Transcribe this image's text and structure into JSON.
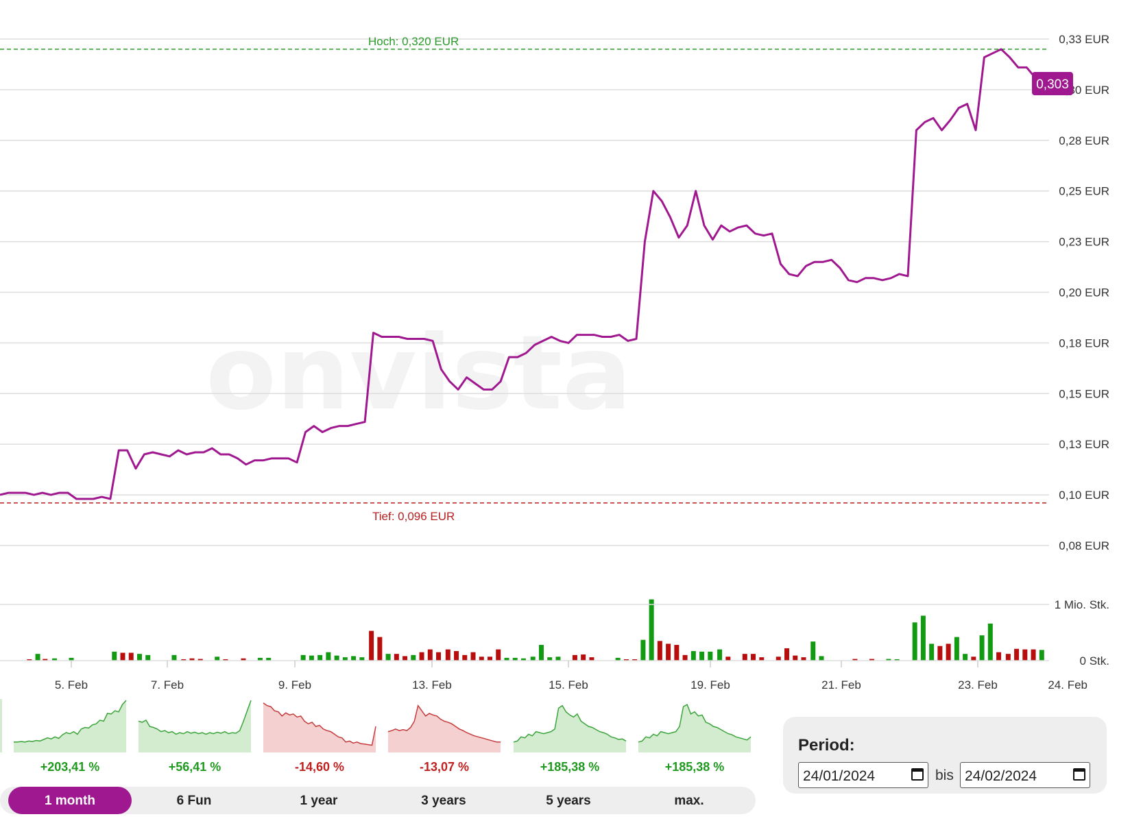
{
  "chart_data": {
    "type": "line",
    "watermark": "onvista",
    "y_ticks": [
      "0,33 EUR",
      "0,30 EUR",
      "0,28 EUR",
      "0,25 EUR",
      "0,23 EUR",
      "0,20 EUR",
      "0,18 EUR",
      "0,15 EUR",
      "0,13 EUR",
      "0,10 EUR",
      "0,08 EUR"
    ],
    "y_tick_values": [
      0.325,
      0.3,
      0.275,
      0.25,
      0.225,
      0.2,
      0.175,
      0.15,
      0.125,
      0.1,
      0.075
    ],
    "ylim": [
      0.075,
      0.325
    ],
    "x_ticks": [
      "5. Feb",
      "7. Feb",
      "9. Feb",
      "13. Feb",
      "15. Feb",
      "19. Feb",
      "21. Feb",
      "23. Feb",
      "24. Feb"
    ],
    "high_label": "Hoch: 0,320 EUR",
    "high_value": 0.32,
    "low_label": "Tief: 0,096 EUR",
    "low_value": 0.096,
    "current_label": "0,303",
    "current_value": 0.303,
    "series": [
      {
        "values": [
          0.1,
          0.101,
          0.101,
          0.101,
          0.1,
          0.101,
          0.1,
          0.101,
          0.101,
          0.098,
          0.098,
          0.098,
          0.099,
          0.098,
          0.122,
          0.122,
          0.113,
          0.12,
          0.121,
          0.12,
          0.119,
          0.122,
          0.12,
          0.121,
          0.121,
          0.123,
          0.12,
          0.12,
          0.118,
          0.115,
          0.117,
          0.117,
          0.118,
          0.118,
          0.118,
          0.116,
          0.131,
          0.134,
          0.131,
          0.133,
          0.134,
          0.134,
          0.135,
          0.136,
          0.18,
          0.178,
          0.178,
          0.178,
          0.177,
          0.177,
          0.177,
          0.176,
          0.162,
          0.156,
          0.152,
          0.158,
          0.155,
          0.152,
          0.152,
          0.156,
          0.168,
          0.168,
          0.17,
          0.174,
          0.176,
          0.178,
          0.176,
          0.175,
          0.179,
          0.179,
          0.179,
          0.178,
          0.178,
          0.179,
          0.176,
          0.177,
          0.225,
          0.25,
          0.245,
          0.237,
          0.227,
          0.233,
          0.25,
          0.233,
          0.226,
          0.233,
          0.23,
          0.232,
          0.233,
          0.229,
          0.228,
          0.229,
          0.214,
          0.209,
          0.208,
          0.213,
          0.215,
          0.215,
          0.216,
          0.212,
          0.206,
          0.205,
          0.207,
          0.207,
          0.206,
          0.207,
          0.209,
          0.208,
          0.28,
          0.284,
          0.286,
          0.28,
          0.285,
          0.291,
          0.293,
          0.28,
          0.316,
          0.318,
          0.32,
          0.316,
          0.311,
          0.311,
          0.306,
          0.303
        ]
      }
    ],
    "volume": {
      "y_ticks": [
        "1 Mio. Stk.",
        "0 Stk."
      ],
      "max_value": 1.0,
      "bars": [
        {
          "x": 0.028,
          "v": 0.02,
          "c": "red"
        },
        {
          "x": 0.036,
          "v": 0.12,
          "c": "green"
        },
        {
          "x": 0.043,
          "v": 0.03,
          "c": "red"
        },
        {
          "x": 0.052,
          "v": 0.04,
          "c": "green"
        },
        {
          "x": 0.068,
          "v": 0.05,
          "c": "green"
        },
        {
          "x": 0.109,
          "v": 0.16,
          "c": "green"
        },
        {
          "x": 0.117,
          "v": 0.14,
          "c": "red"
        },
        {
          "x": 0.125,
          "v": 0.14,
          "c": "red"
        },
        {
          "x": 0.133,
          "v": 0.12,
          "c": "green"
        },
        {
          "x": 0.141,
          "v": 0.1,
          "c": "green"
        },
        {
          "x": 0.166,
          "v": 0.1,
          "c": "green"
        },
        {
          "x": 0.175,
          "v": 0.02,
          "c": "red"
        },
        {
          "x": 0.183,
          "v": 0.04,
          "c": "red"
        },
        {
          "x": 0.191,
          "v": 0.03,
          "c": "red"
        },
        {
          "x": 0.207,
          "v": 0.07,
          "c": "green"
        },
        {
          "x": 0.215,
          "v": 0.02,
          "c": "red"
        },
        {
          "x": 0.232,
          "v": 0.04,
          "c": "red"
        },
        {
          "x": 0.248,
          "v": 0.05,
          "c": "green"
        },
        {
          "x": 0.256,
          "v": 0.05,
          "c": "green"
        },
        {
          "x": 0.289,
          "v": 0.1,
          "c": "green"
        },
        {
          "x": 0.297,
          "v": 0.09,
          "c": "green"
        },
        {
          "x": 0.305,
          "v": 0.1,
          "c": "green"
        },
        {
          "x": 0.313,
          "v": 0.15,
          "c": "green"
        },
        {
          "x": 0.321,
          "v": 0.09,
          "c": "green"
        },
        {
          "x": 0.329,
          "v": 0.06,
          "c": "green"
        },
        {
          "x": 0.337,
          "v": 0.08,
          "c": "green"
        },
        {
          "x": 0.345,
          "v": 0.06,
          "c": "green"
        },
        {
          "x": 0.354,
          "v": 0.53,
          "c": "red"
        },
        {
          "x": 0.362,
          "v": 0.42,
          "c": "red"
        },
        {
          "x": 0.37,
          "v": 0.12,
          "c": "green"
        },
        {
          "x": 0.378,
          "v": 0.12,
          "c": "red"
        },
        {
          "x": 0.386,
          "v": 0.08,
          "c": "red"
        },
        {
          "x": 0.394,
          "v": 0.1,
          "c": "green"
        },
        {
          "x": 0.402,
          "v": 0.15,
          "c": "red"
        },
        {
          "x": 0.41,
          "v": 0.2,
          "c": "red"
        },
        {
          "x": 0.418,
          "v": 0.15,
          "c": "red"
        },
        {
          "x": 0.427,
          "v": 0.2,
          "c": "red"
        },
        {
          "x": 0.435,
          "v": 0.17,
          "c": "red"
        },
        {
          "x": 0.443,
          "v": 0.1,
          "c": "red"
        },
        {
          "x": 0.451,
          "v": 0.15,
          "c": "red"
        },
        {
          "x": 0.459,
          "v": 0.07,
          "c": "red"
        },
        {
          "x": 0.467,
          "v": 0.07,
          "c": "red"
        },
        {
          "x": 0.475,
          "v": 0.2,
          "c": "red"
        },
        {
          "x": 0.483,
          "v": 0.05,
          "c": "green"
        },
        {
          "x": 0.491,
          "v": 0.05,
          "c": "green"
        },
        {
          "x": 0.499,
          "v": 0.04,
          "c": "green"
        },
        {
          "x": 0.508,
          "v": 0.07,
          "c": "green"
        },
        {
          "x": 0.516,
          "v": 0.28,
          "c": "green"
        },
        {
          "x": 0.524,
          "v": 0.06,
          "c": "green"
        },
        {
          "x": 0.532,
          "v": 0.07,
          "c": "green"
        },
        {
          "x": 0.548,
          "v": 0.1,
          "c": "red"
        },
        {
          "x": 0.556,
          "v": 0.11,
          "c": "red"
        },
        {
          "x": 0.564,
          "v": 0.06,
          "c": "red"
        },
        {
          "x": 0.589,
          "v": 0.05,
          "c": "green"
        },
        {
          "x": 0.597,
          "v": 0.02,
          "c": "red"
        },
        {
          "x": 0.605,
          "v": 0.02,
          "c": "red"
        },
        {
          "x": 0.613,
          "v": 0.37,
          "c": "green"
        },
        {
          "x": 0.621,
          "v": 1.09,
          "c": "green"
        },
        {
          "x": 0.629,
          "v": 0.35,
          "c": "red"
        },
        {
          "x": 0.637,
          "v": 0.3,
          "c": "red"
        },
        {
          "x": 0.645,
          "v": 0.28,
          "c": "red"
        },
        {
          "x": 0.653,
          "v": 0.1,
          "c": "red"
        },
        {
          "x": 0.661,
          "v": 0.17,
          "c": "green"
        },
        {
          "x": 0.669,
          "v": 0.16,
          "c": "green"
        },
        {
          "x": 0.677,
          "v": 0.16,
          "c": "green"
        },
        {
          "x": 0.686,
          "v": 0.2,
          "c": "green"
        },
        {
          "x": 0.694,
          "v": 0.07,
          "c": "red"
        },
        {
          "x": 0.71,
          "v": 0.12,
          "c": "red"
        },
        {
          "x": 0.718,
          "v": 0.12,
          "c": "red"
        },
        {
          "x": 0.726,
          "v": 0.06,
          "c": "red"
        },
        {
          "x": 0.742,
          "v": 0.07,
          "c": "red"
        },
        {
          "x": 0.75,
          "v": 0.22,
          "c": "red"
        },
        {
          "x": 0.758,
          "v": 0.09,
          "c": "red"
        },
        {
          "x": 0.766,
          "v": 0.06,
          "c": "red"
        },
        {
          "x": 0.775,
          "v": 0.34,
          "c": "green"
        },
        {
          "x": 0.783,
          "v": 0.08,
          "c": "green"
        },
        {
          "x": 0.815,
          "v": 0.03,
          "c": "red"
        },
        {
          "x": 0.831,
          "v": 0.03,
          "c": "red"
        },
        {
          "x": 0.847,
          "v": 0.03,
          "c": "green"
        },
        {
          "x": 0.855,
          "v": 0.02,
          "c": "green"
        },
        {
          "x": 0.872,
          "v": 0.68,
          "c": "green"
        },
        {
          "x": 0.88,
          "v": 0.8,
          "c": "green"
        },
        {
          "x": 0.888,
          "v": 0.3,
          "c": "green"
        },
        {
          "x": 0.896,
          "v": 0.26,
          "c": "red"
        },
        {
          "x": 0.904,
          "v": 0.3,
          "c": "red"
        },
        {
          "x": 0.912,
          "v": 0.42,
          "c": "green"
        },
        {
          "x": 0.92,
          "v": 0.12,
          "c": "green"
        },
        {
          "x": 0.928,
          "v": 0.07,
          "c": "red"
        },
        {
          "x": 0.936,
          "v": 0.45,
          "c": "green"
        },
        {
          "x": 0.944,
          "v": 0.66,
          "c": "green"
        },
        {
          "x": 0.952,
          "v": 0.15,
          "c": "red"
        },
        {
          "x": 0.961,
          "v": 0.12,
          "c": "red"
        },
        {
          "x": 0.969,
          "v": 0.21,
          "c": "red"
        },
        {
          "x": 0.977,
          "v": 0.2,
          "c": "red"
        },
        {
          "x": 0.985,
          "v": 0.2,
          "c": "red"
        },
        {
          "x": 0.993,
          "v": 0.19,
          "c": "green"
        }
      ]
    },
    "colors": {
      "price_line": "#a0188f",
      "high": "#2a9a2a",
      "low": "#b52020",
      "volume_up": "#139a13",
      "volume_down": "#b80d0d",
      "grid": "#dddddd"
    }
  },
  "sparklines": [
    {
      "label": "+203,41 %",
      "trend": "up",
      "values": [
        20,
        20,
        21,
        20,
        22,
        21,
        23,
        22,
        25,
        28,
        26,
        30,
        27,
        34,
        38,
        36,
        40,
        35,
        45,
        48,
        47,
        53,
        55,
        62,
        60,
        75,
        74,
        80,
        78,
        92,
        100
      ]
    },
    {
      "label": "+56,41 %",
      "trend": "up",
      "values": [
        60,
        58,
        62,
        50,
        48,
        45,
        40,
        42,
        38,
        40,
        35,
        38,
        36,
        40,
        37,
        39,
        36,
        38,
        35,
        38,
        36,
        39,
        37,
        40,
        36,
        38,
        37,
        42,
        60,
        80,
        100
      ]
    },
    {
      "label": "-14,60 %",
      "trend": "down",
      "values": [
        95,
        90,
        88,
        80,
        78,
        70,
        76,
        72,
        74,
        68,
        70,
        60,
        55,
        58,
        50,
        52,
        45,
        42,
        40,
        35,
        30,
        28,
        20,
        22,
        18,
        20,
        17,
        16,
        15,
        14,
        50
      ]
    },
    {
      "label": "-13,07 %",
      "trend": "down",
      "values": [
        40,
        42,
        45,
        42,
        44,
        42,
        48,
        60,
        90,
        80,
        70,
        75,
        72,
        70,
        64,
        60,
        58,
        55,
        50,
        45,
        42,
        38,
        35,
        32,
        30,
        28,
        26,
        24,
        22,
        20,
        20
      ]
    },
    {
      "label": "+185,38 %",
      "trend": "up",
      "values": [
        20,
        22,
        30,
        28,
        35,
        32,
        40,
        38,
        36,
        38,
        40,
        45,
        85,
        90,
        78,
        72,
        68,
        74,
        60,
        55,
        50,
        48,
        44,
        40,
        38,
        35,
        30,
        28,
        25,
        26,
        22
      ]
    },
    {
      "label": "+185,38 %",
      "trend": "up",
      "values": [
        20,
        22,
        30,
        28,
        35,
        32,
        40,
        38,
        36,
        38,
        40,
        50,
        88,
        92,
        74,
        78,
        70,
        72,
        58,
        55,
        50,
        48,
        44,
        40,
        36,
        34,
        30,
        28,
        26,
        24,
        30
      ]
    }
  ],
  "range_buttons": [
    "1 month",
    "6 Fun",
    "1 year",
    "3 years",
    "5 years",
    "max."
  ],
  "period": {
    "title": "Period:",
    "from": "24/01/2024",
    "separator": "bis",
    "to": "24/02/2024"
  }
}
